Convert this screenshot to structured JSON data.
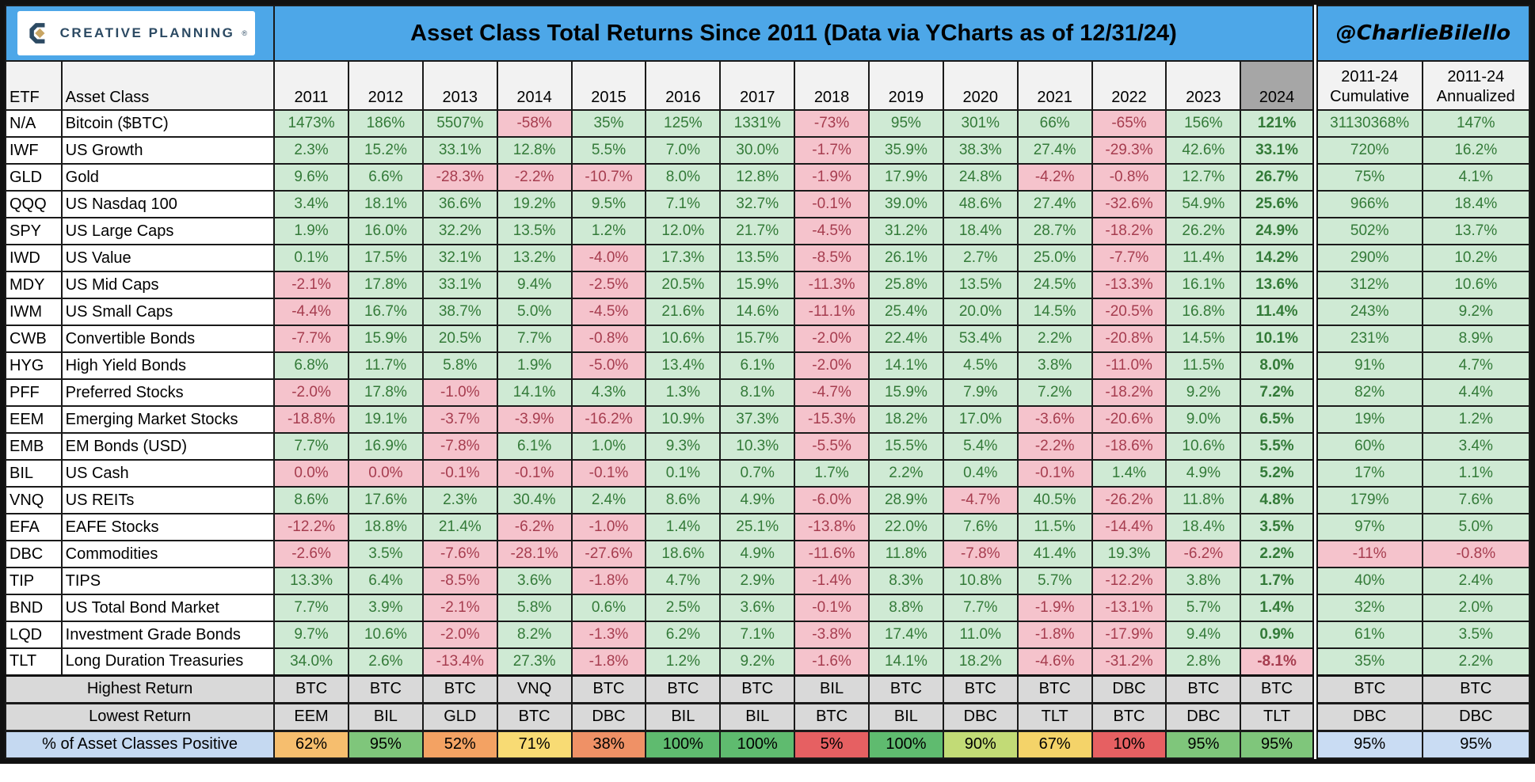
{
  "chart_data": {
    "type": "table",
    "title": "Asset Class Total Returns Since 2011 (Data via YCharts as of 12/31/24)",
    "logo_text": "CREATIVE PLANNING",
    "handle": "@CharlieBilello",
    "columns": {
      "etf_label": "ETF",
      "asset_class_label": "Asset Class",
      "years": [
        "2011",
        "2012",
        "2013",
        "2014",
        "2015",
        "2016",
        "2017",
        "2018",
        "2019",
        "2020",
        "2021",
        "2022",
        "2023",
        "2024"
      ],
      "cumulative_label": "2011-24\nCumulative",
      "annualized_label": "2011-24\nAnnualized"
    },
    "rows": [
      {
        "etf": "N/A",
        "asset_class": "Bitcoin ($BTC)",
        "values": [
          "1473%",
          "186%",
          "5507%",
          "-58%",
          "35%",
          "125%",
          "1331%",
          "-73%",
          "95%",
          "301%",
          "66%",
          "-65%",
          "156%",
          "121%"
        ],
        "cumulative": "31130368%",
        "annualized": "147%"
      },
      {
        "etf": "IWF",
        "asset_class": "US Growth",
        "values": [
          "2.3%",
          "15.2%",
          "33.1%",
          "12.8%",
          "5.5%",
          "7.0%",
          "30.0%",
          "-1.7%",
          "35.9%",
          "38.3%",
          "27.4%",
          "-29.3%",
          "42.6%",
          "33.1%"
        ],
        "cumulative": "720%",
        "annualized": "16.2%"
      },
      {
        "etf": "GLD",
        "asset_class": "Gold",
        "values": [
          "9.6%",
          "6.6%",
          "-28.3%",
          "-2.2%",
          "-10.7%",
          "8.0%",
          "12.8%",
          "-1.9%",
          "17.9%",
          "24.8%",
          "-4.2%",
          "-0.8%",
          "12.7%",
          "26.7%"
        ],
        "cumulative": "75%",
        "annualized": "4.1%"
      },
      {
        "etf": "QQQ",
        "asset_class": "US Nasdaq 100",
        "values": [
          "3.4%",
          "18.1%",
          "36.6%",
          "19.2%",
          "9.5%",
          "7.1%",
          "32.7%",
          "-0.1%",
          "39.0%",
          "48.6%",
          "27.4%",
          "-32.6%",
          "54.9%",
          "25.6%"
        ],
        "cumulative": "966%",
        "annualized": "18.4%"
      },
      {
        "etf": "SPY",
        "asset_class": "US Large Caps",
        "values": [
          "1.9%",
          "16.0%",
          "32.2%",
          "13.5%",
          "1.2%",
          "12.0%",
          "21.7%",
          "-4.5%",
          "31.2%",
          "18.4%",
          "28.7%",
          "-18.2%",
          "26.2%",
          "24.9%"
        ],
        "cumulative": "502%",
        "annualized": "13.7%"
      },
      {
        "etf": "IWD",
        "asset_class": "US Value",
        "values": [
          "0.1%",
          "17.5%",
          "32.1%",
          "13.2%",
          "-4.0%",
          "17.3%",
          "13.5%",
          "-8.5%",
          "26.1%",
          "2.7%",
          "25.0%",
          "-7.7%",
          "11.4%",
          "14.2%"
        ],
        "cumulative": "290%",
        "annualized": "10.2%"
      },
      {
        "etf": "MDY",
        "asset_class": "US Mid Caps",
        "values": [
          "-2.1%",
          "17.8%",
          "33.1%",
          "9.4%",
          "-2.5%",
          "20.5%",
          "15.9%",
          "-11.3%",
          "25.8%",
          "13.5%",
          "24.5%",
          "-13.3%",
          "16.1%",
          "13.6%"
        ],
        "cumulative": "312%",
        "annualized": "10.6%"
      },
      {
        "etf": "IWM",
        "asset_class": "US Small Caps",
        "values": [
          "-4.4%",
          "16.7%",
          "38.7%",
          "5.0%",
          "-4.5%",
          "21.6%",
          "14.6%",
          "-11.1%",
          "25.4%",
          "20.0%",
          "14.5%",
          "-20.5%",
          "16.8%",
          "11.4%"
        ],
        "cumulative": "243%",
        "annualized": "9.2%"
      },
      {
        "etf": "CWB",
        "asset_class": "Convertible Bonds",
        "values": [
          "-7.7%",
          "15.9%",
          "20.5%",
          "7.7%",
          "-0.8%",
          "10.6%",
          "15.7%",
          "-2.0%",
          "22.4%",
          "53.4%",
          "2.2%",
          "-20.8%",
          "14.5%",
          "10.1%"
        ],
        "cumulative": "231%",
        "annualized": "8.9%"
      },
      {
        "etf": "HYG",
        "asset_class": "High Yield Bonds",
        "values": [
          "6.8%",
          "11.7%",
          "5.8%",
          "1.9%",
          "-5.0%",
          "13.4%",
          "6.1%",
          "-2.0%",
          "14.1%",
          "4.5%",
          "3.8%",
          "-11.0%",
          "11.5%",
          "8.0%"
        ],
        "cumulative": "91%",
        "annualized": "4.7%"
      },
      {
        "etf": "PFF",
        "asset_class": "Preferred Stocks",
        "values": [
          "-2.0%",
          "17.8%",
          "-1.0%",
          "14.1%",
          "4.3%",
          "1.3%",
          "8.1%",
          "-4.7%",
          "15.9%",
          "7.9%",
          "7.2%",
          "-18.2%",
          "9.2%",
          "7.2%"
        ],
        "cumulative": "82%",
        "annualized": "4.4%"
      },
      {
        "etf": "EEM",
        "asset_class": "Emerging Market Stocks",
        "values": [
          "-18.8%",
          "19.1%",
          "-3.7%",
          "-3.9%",
          "-16.2%",
          "10.9%",
          "37.3%",
          "-15.3%",
          "18.2%",
          "17.0%",
          "-3.6%",
          "-20.6%",
          "9.0%",
          "6.5%"
        ],
        "cumulative": "19%",
        "annualized": "1.2%"
      },
      {
        "etf": "EMB",
        "asset_class": "EM Bonds (USD)",
        "values": [
          "7.7%",
          "16.9%",
          "-7.8%",
          "6.1%",
          "1.0%",
          "9.3%",
          "10.3%",
          "-5.5%",
          "15.5%",
          "5.4%",
          "-2.2%",
          "-18.6%",
          "10.6%",
          "5.5%"
        ],
        "cumulative": "60%",
        "annualized": "3.4%"
      },
      {
        "etf": "BIL",
        "asset_class": "US Cash",
        "values": [
          "0.0%",
          "0.0%",
          "-0.1%",
          "-0.1%",
          "-0.1%",
          "0.1%",
          "0.7%",
          "1.7%",
          "2.2%",
          "0.4%",
          "-0.1%",
          "1.4%",
          "4.9%",
          "5.2%"
        ],
        "cumulative": "17%",
        "annualized": "1.1%"
      },
      {
        "etf": "VNQ",
        "asset_class": "US REITs",
        "values": [
          "8.6%",
          "17.6%",
          "2.3%",
          "30.4%",
          "2.4%",
          "8.6%",
          "4.9%",
          "-6.0%",
          "28.9%",
          "-4.7%",
          "40.5%",
          "-26.2%",
          "11.8%",
          "4.8%"
        ],
        "cumulative": "179%",
        "annualized": "7.6%"
      },
      {
        "etf": "EFA",
        "asset_class": "EAFE Stocks",
        "values": [
          "-12.2%",
          "18.8%",
          "21.4%",
          "-6.2%",
          "-1.0%",
          "1.4%",
          "25.1%",
          "-13.8%",
          "22.0%",
          "7.6%",
          "11.5%",
          "-14.4%",
          "18.4%",
          "3.5%"
        ],
        "cumulative": "97%",
        "annualized": "5.0%"
      },
      {
        "etf": "DBC",
        "asset_class": "Commodities",
        "values": [
          "-2.6%",
          "3.5%",
          "-7.6%",
          "-28.1%",
          "-27.6%",
          "18.6%",
          "4.9%",
          "-11.6%",
          "11.8%",
          "-7.8%",
          "41.4%",
          "19.3%",
          "-6.2%",
          "2.2%"
        ],
        "cumulative": "-11%",
        "annualized": "-0.8%"
      },
      {
        "etf": "TIP",
        "asset_class": "TIPS",
        "values": [
          "13.3%",
          "6.4%",
          "-8.5%",
          "3.6%",
          "-1.8%",
          "4.7%",
          "2.9%",
          "-1.4%",
          "8.3%",
          "10.8%",
          "5.7%",
          "-12.2%",
          "3.8%",
          "1.7%"
        ],
        "cumulative": "40%",
        "annualized": "2.4%"
      },
      {
        "etf": "BND",
        "asset_class": "US Total Bond Market",
        "values": [
          "7.7%",
          "3.9%",
          "-2.1%",
          "5.8%",
          "0.6%",
          "2.5%",
          "3.6%",
          "-0.1%",
          "8.8%",
          "7.7%",
          "-1.9%",
          "-13.1%",
          "5.7%",
          "1.4%"
        ],
        "cumulative": "32%",
        "annualized": "2.0%"
      },
      {
        "etf": "LQD",
        "asset_class": "Investment Grade Bonds",
        "values": [
          "9.7%",
          "10.6%",
          "-2.0%",
          "8.2%",
          "-1.3%",
          "6.2%",
          "7.1%",
          "-3.8%",
          "17.4%",
          "11.0%",
          "-1.8%",
          "-17.9%",
          "9.4%",
          "0.9%"
        ],
        "cumulative": "61%",
        "annualized": "3.5%"
      },
      {
        "etf": "TLT",
        "asset_class": "Long Duration Treasuries",
        "values": [
          "34.0%",
          "2.6%",
          "-13.4%",
          "27.3%",
          "-1.8%",
          "1.2%",
          "9.2%",
          "-1.6%",
          "14.1%",
          "18.2%",
          "-4.6%",
          "-31.2%",
          "2.8%",
          "-8.1%"
        ],
        "cumulative": "35%",
        "annualized": "2.2%"
      }
    ],
    "summary": {
      "highest": {
        "label": "Highest Return",
        "values": [
          "BTC",
          "BTC",
          "BTC",
          "VNQ",
          "BTC",
          "BTC",
          "BTC",
          "BIL",
          "BTC",
          "BTC",
          "BTC",
          "DBC",
          "BTC",
          "BTC"
        ],
        "cumulative": "BTC",
        "annualized": "BTC"
      },
      "lowest": {
        "label": "Lowest Return",
        "values": [
          "EEM",
          "BIL",
          "GLD",
          "BTC",
          "DBC",
          "BIL",
          "BIL",
          "BTC",
          "BIL",
          "DBC",
          "TLT",
          "BTC",
          "DBC",
          "TLT"
        ],
        "cumulative": "DBC",
        "annualized": "DBC"
      },
      "pct_positive": {
        "label": "% of Asset Classes Positive",
        "values": [
          "62%",
          "95%",
          "52%",
          "71%",
          "38%",
          "100%",
          "100%",
          "5%",
          "100%",
          "90%",
          "67%",
          "10%",
          "95%",
          "95%"
        ],
        "colors": [
          "#F6BE6E",
          "#7FC67B",
          "#F3A263",
          "#F8DB74",
          "#EF9166",
          "#5FBB6F",
          "#5FBB6F",
          "#E66062",
          "#5FBB6F",
          "#C2DB76",
          "#F4D369",
          "#E66062",
          "#7FC67B",
          "#7FC67B"
        ],
        "cumulative": "95%",
        "annualized": "95%",
        "cum_bg": "#C9DCF3"
      }
    },
    "style_colors": {
      "header_blue": "#4DA7E8",
      "positive_bg": "#CFEAD4",
      "positive_text": "#337A38",
      "negative_bg": "#F5C3CC",
      "negative_text": "#A63D4F",
      "header_gray": "#F2F2F2",
      "year2024_gray": "#A6A6A6",
      "summary_gray": "#D9D9D9",
      "summary_blue": "#C5D9F1"
    }
  }
}
